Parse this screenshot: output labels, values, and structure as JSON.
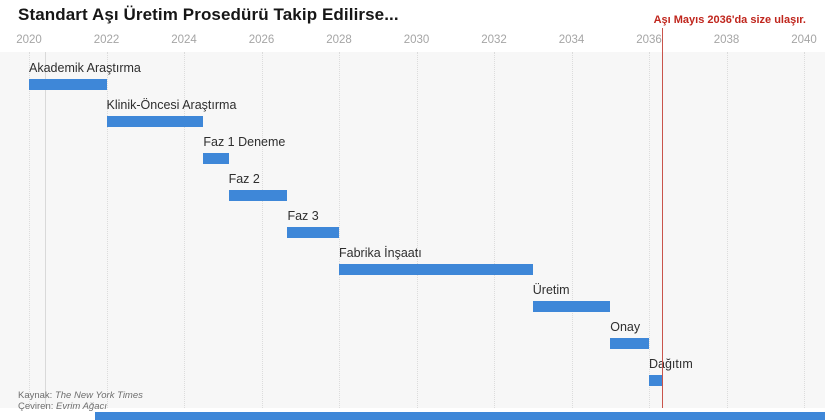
{
  "source": {
    "line1_label": "Kaynak: ",
    "line1_value": "The New York Times",
    "line2_label": "Çeviren: ",
    "line2_value": "Evrim Ağacı"
  },
  "colors": {
    "bar": "#3e87d8",
    "red_text": "#c0261d",
    "red_line": "#c9544b",
    "grid": "#dcdcdc",
    "axis_label": "#a5a5a5",
    "task_label": "#2e2e2e",
    "plot_bg": "#f7f7f7",
    "today_line": "#d9d9d9",
    "source_text": "#6e6e6e"
  },
  "chart_data": {
    "type": "bar",
    "variant": "gantt-timeline",
    "title": "Standart Aşı Üretim Prosedürü Takip Edilirse...",
    "xlabel": "",
    "ylabel": "",
    "xlim": [
      2020,
      2040
    ],
    "x_ticks": [
      2020,
      2022,
      2024,
      2026,
      2028,
      2030,
      2032,
      2034,
      2036,
      2038,
      2040
    ],
    "grid": "vertical dotted lines every 2 years",
    "legend": "none",
    "today_marker_year": 2020.4,
    "deadline_marker": {
      "year": 2036.33,
      "label": "Aşı Mayıs 2036'da size ulaşır."
    },
    "tasks": [
      {
        "label": "Akademik Araştırma",
        "start": 2020.0,
        "end": 2022.0
      },
      {
        "label": "Klinik-Öncesi Araştırma",
        "start": 2022.0,
        "end": 2024.5
      },
      {
        "label": "Faz 1 Deneme",
        "start": 2024.5,
        "end": 2025.15
      },
      {
        "label": "Faz 2",
        "start": 2025.15,
        "end": 2026.67
      },
      {
        "label": "Faz 3",
        "start": 2026.67,
        "end": 2028.0
      },
      {
        "label": "Fabrika İnşaatı",
        "start": 2028.0,
        "end": 2033.0
      },
      {
        "label": "Üretim",
        "start": 2033.0,
        "end": 2035.0
      },
      {
        "label": "Onay",
        "start": 2035.0,
        "end": 2036.0
      },
      {
        "label": "Dağıtım",
        "start": 2036.0,
        "end": 2036.33
      }
    ],
    "next_chart_peek": {
      "visible": true,
      "start_year": 2021.7,
      "cut_off_at_bottom": true
    }
  }
}
